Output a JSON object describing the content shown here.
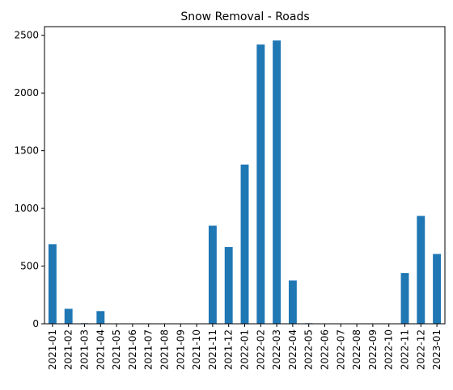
{
  "chart_data": {
    "type": "bar",
    "title": "Snow Removal - Roads",
    "xlabel": "",
    "ylabel": "",
    "categories": [
      "2021-01",
      "2021-02",
      "2021-03",
      "2021-04",
      "2021-05",
      "2021-06",
      "2021-07",
      "2021-08",
      "2021-09",
      "2021-10",
      "2021-11",
      "2021-12",
      "2022-01",
      "2022-02",
      "2022-03",
      "2022-04",
      "2022-05",
      "2022-06",
      "2022-07",
      "2022-08",
      "2022-09",
      "2022-10",
      "2022-11",
      "2022-12",
      "2023-01"
    ],
    "values": [
      690,
      130,
      5,
      110,
      0,
      0,
      0,
      0,
      0,
      0,
      850,
      665,
      1380,
      2420,
      2455,
      375,
      5,
      0,
      0,
      0,
      0,
      0,
      440,
      935,
      605
    ],
    "ylim": [
      0,
      2575
    ],
    "yticks": [
      0,
      500,
      1000,
      1500,
      2000,
      2500
    ],
    "bar_color": "#1f77b4",
    "grid": false,
    "legend": false
  }
}
